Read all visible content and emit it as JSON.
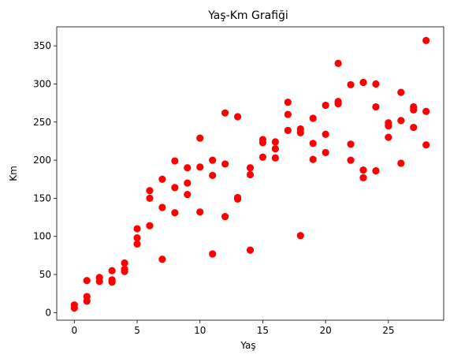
{
  "chart_data": {
    "type": "scatter",
    "title": "Yaş-Km Grafiği",
    "xlabel": "Yaş",
    "ylabel": "Km",
    "xlim": [
      -1.4,
      29.4
    ],
    "ylim": [
      -10,
      375
    ],
    "xticks": [
      0,
      5,
      10,
      15,
      20,
      25
    ],
    "yticks": [
      0,
      50,
      100,
      150,
      200,
      250,
      300,
      350
    ],
    "grid": false,
    "legend": "none",
    "marker_color": "#ff0000",
    "points": [
      [
        0,
        6
      ],
      [
        0,
        10
      ],
      [
        1,
        42
      ],
      [
        1,
        15
      ],
      [
        1,
        21
      ],
      [
        2,
        46
      ],
      [
        2,
        41
      ],
      [
        3,
        55
      ],
      [
        3,
        43
      ],
      [
        3,
        40
      ],
      [
        4,
        65
      ],
      [
        4,
        54
      ],
      [
        4,
        57
      ],
      [
        5,
        110
      ],
      [
        5,
        98
      ],
      [
        5,
        90
      ],
      [
        6,
        160
      ],
      [
        6,
        150
      ],
      [
        6,
        114
      ],
      [
        7,
        175
      ],
      [
        7,
        138
      ],
      [
        7,
        70
      ],
      [
        8,
        199
      ],
      [
        8,
        164
      ],
      [
        8,
        131
      ],
      [
        9,
        190
      ],
      [
        9,
        170
      ],
      [
        9,
        155
      ],
      [
        10,
        229
      ],
      [
        10,
        191
      ],
      [
        10,
        132
      ],
      [
        11,
        200
      ],
      [
        11,
        180
      ],
      [
        11,
        77
      ],
      [
        12,
        262
      ],
      [
        12,
        195
      ],
      [
        12,
        126
      ],
      [
        13,
        257
      ],
      [
        13,
        151
      ],
      [
        13,
        149
      ],
      [
        14,
        190
      ],
      [
        14,
        181
      ],
      [
        14,
        82
      ],
      [
        15,
        227
      ],
      [
        15,
        223
      ],
      [
        15,
        204
      ],
      [
        16,
        224
      ],
      [
        16,
        215
      ],
      [
        16,
        203
      ],
      [
        17,
        276
      ],
      [
        17,
        260
      ],
      [
        17,
        239
      ],
      [
        18,
        241
      ],
      [
        18,
        236
      ],
      [
        18,
        101
      ],
      [
        19,
        255
      ],
      [
        19,
        222
      ],
      [
        19,
        201
      ],
      [
        20,
        272
      ],
      [
        20,
        234
      ],
      [
        20,
        210
      ],
      [
        21,
        327
      ],
      [
        21,
        277
      ],
      [
        21,
        274
      ],
      [
        22,
        299
      ],
      [
        22,
        221
      ],
      [
        22,
        200
      ],
      [
        23,
        302
      ],
      [
        23,
        187
      ],
      [
        23,
        177
      ],
      [
        24,
        300
      ],
      [
        24,
        270
      ],
      [
        24,
        186
      ],
      [
        25,
        249
      ],
      [
        25,
        245
      ],
      [
        25,
        230
      ],
      [
        26,
        289
      ],
      [
        26,
        252
      ],
      [
        26,
        196
      ],
      [
        27,
        270
      ],
      [
        27,
        266
      ],
      [
        27,
        243
      ],
      [
        28,
        357
      ],
      [
        28,
        264
      ],
      [
        28,
        220
      ]
    ]
  }
}
